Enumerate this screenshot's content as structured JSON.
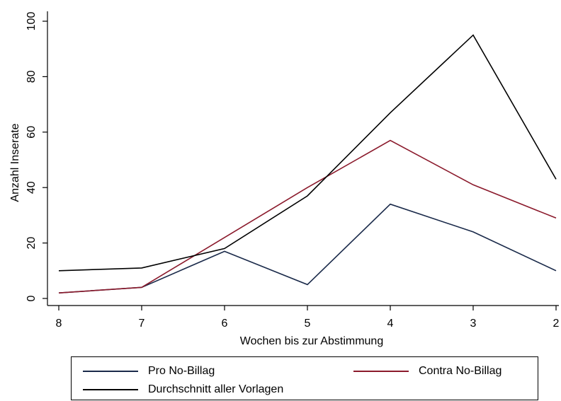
{
  "chart_data": {
    "type": "line",
    "title": "",
    "xlabel": "Wochen bis zur Abstimmung",
    "ylabel": "Anzahl Inserate",
    "x": [
      "8",
      "7",
      "6",
      "5",
      "4",
      "3",
      "2"
    ],
    "yticks": [
      "0",
      "20",
      "40",
      "60",
      "80",
      "100"
    ],
    "ylim": [
      0,
      100
    ],
    "grid": false,
    "legend": "bottom",
    "series": [
      {
        "name": "Pro No-Billag",
        "color": "#1a2a4a",
        "values": [
          2,
          4,
          17,
          5,
          34,
          24,
          10
        ]
      },
      {
        "name": "Contra No-Billag",
        "color": "#8b1a2c",
        "values": [
          2,
          4,
          22,
          40,
          57,
          41,
          29
        ]
      },
      {
        "name": "Durchschnitt aller Vorlagen",
        "color": "#000000",
        "values": [
          10,
          11,
          18,
          37,
          67,
          95,
          43
        ]
      }
    ]
  }
}
